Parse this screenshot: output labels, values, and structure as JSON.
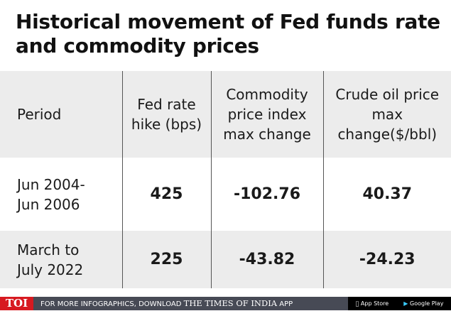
{
  "title": "Historical movement of Fed funds rate and commodity prices",
  "chart_data": {
    "type": "table",
    "title": "Historical movement of Fed funds rate and commodity prices",
    "columns": [
      "Period",
      "Fed rate hike (bps)",
      "Commodity price index max change",
      "Crude oil price max change($/bbl)"
    ],
    "rows": [
      [
        "Jun 2004-Jun 2006",
        "425",
        "-102.76",
        "40.37"
      ],
      [
        "March to July 2022",
        "225",
        "-43.82",
        "-24.23"
      ]
    ]
  },
  "footer": {
    "logo": "TOI",
    "promo": "FOR MORE INFOGRAPHICS, DOWNLOAD",
    "brand": "THE TIMES OF INDIA",
    "app": "APP",
    "app_store": "App Store",
    "google_play": "Google Play"
  }
}
